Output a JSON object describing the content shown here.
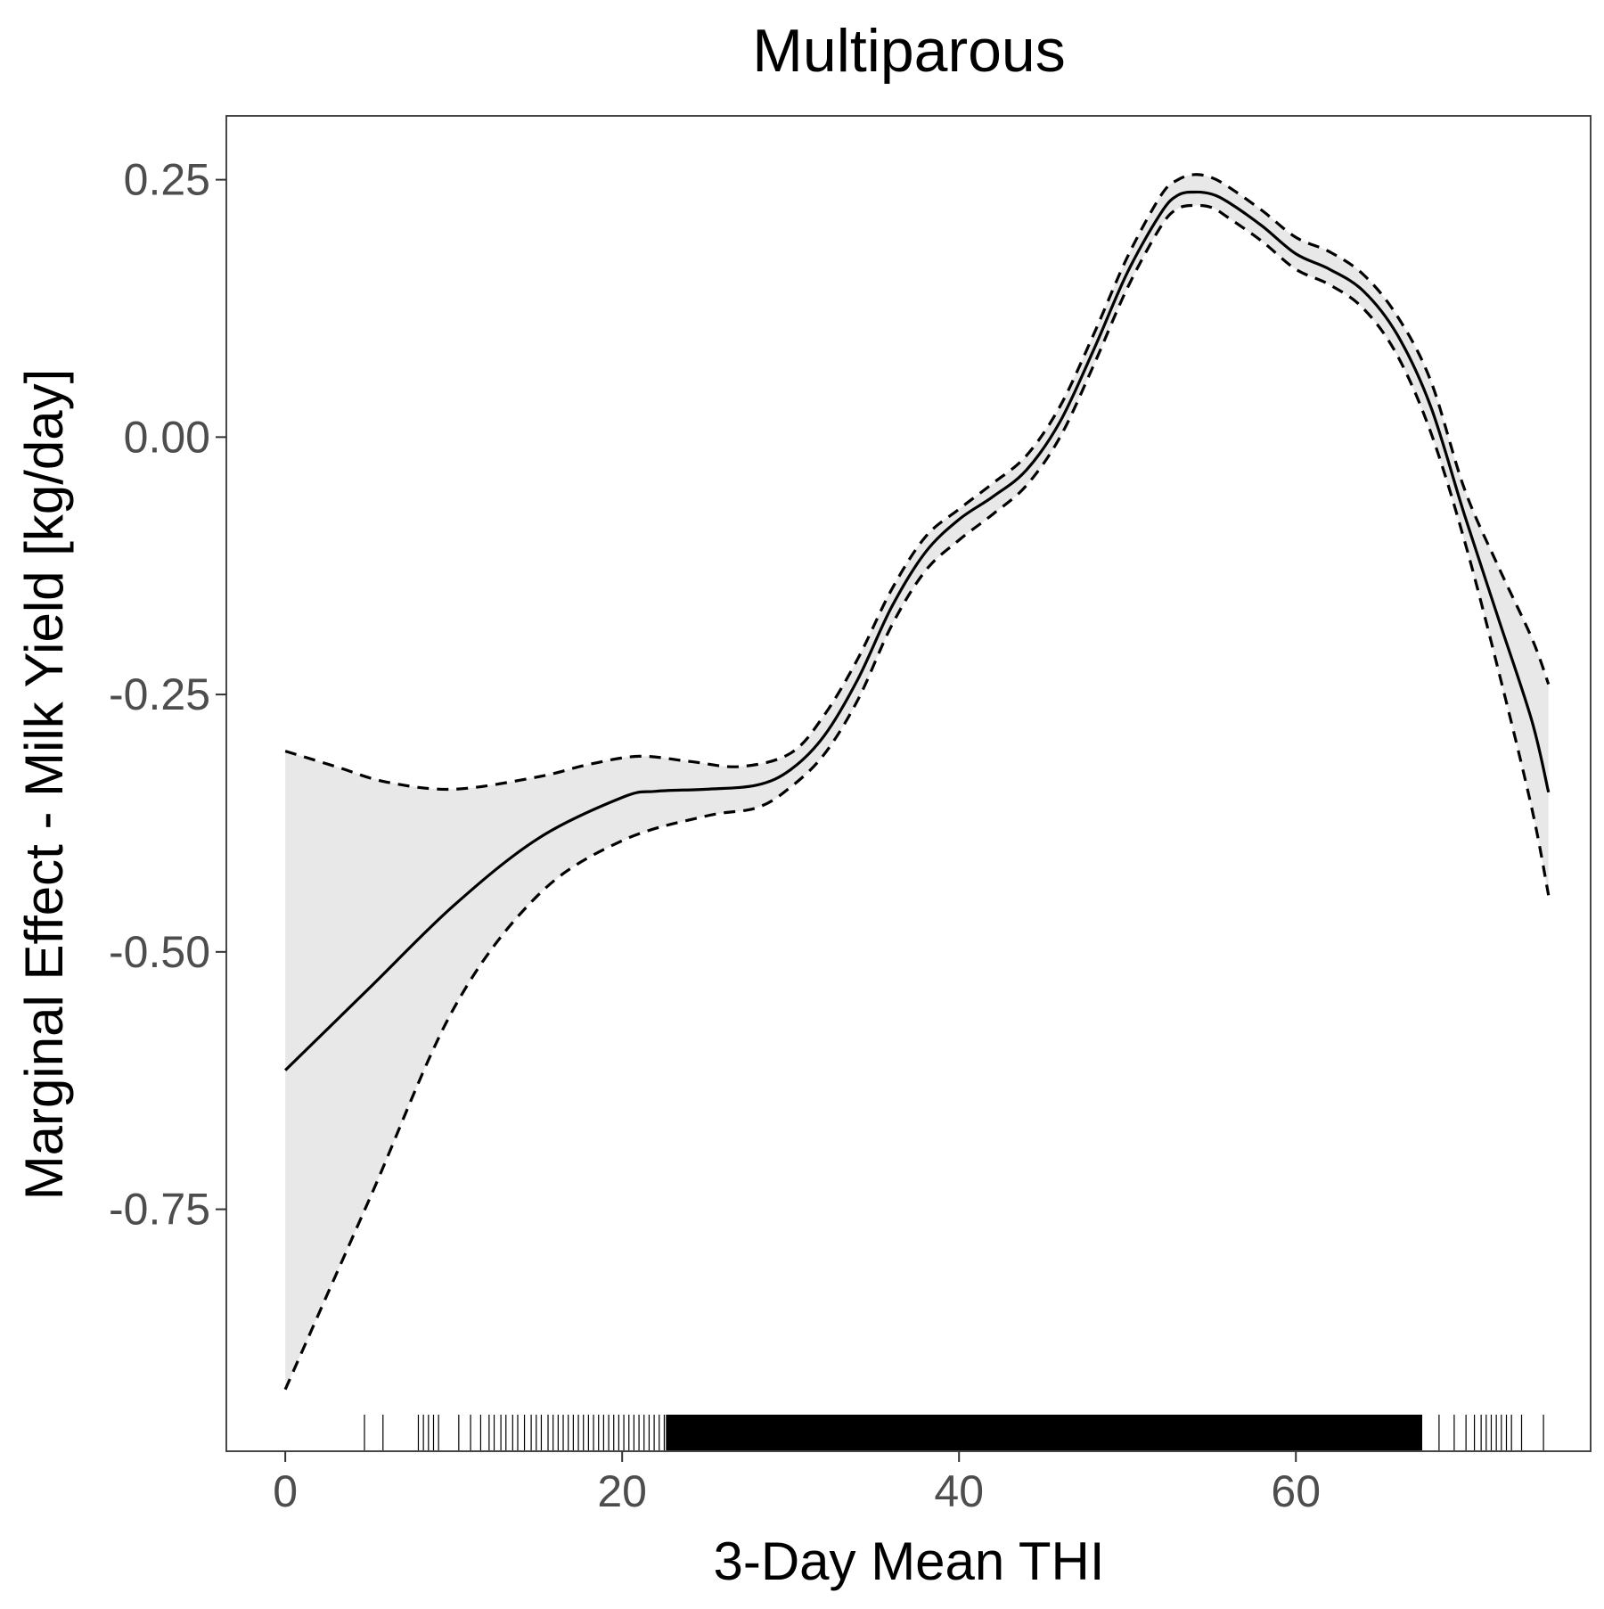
{
  "chart_data": {
    "type": "line",
    "title": "Multiparous",
    "xlabel": "3-Day Mean THI",
    "ylabel": "Marginal Effect - Milk Yield [kg/day]",
    "xlim": [
      -3.5,
      77.5
    ],
    "ylim": [
      -0.985,
      0.312
    ],
    "x_ticks": [
      0,
      20,
      40,
      60
    ],
    "x_tick_labels": [
      "0",
      "20",
      "40",
      "60"
    ],
    "y_ticks": [
      0.25,
      0.0,
      -0.25,
      -0.5,
      -0.75
    ],
    "y_tick_labels": [
      "0.25",
      "0.00",
      "-0.25",
      "-0.50",
      "-0.75"
    ],
    "grid": false,
    "legend": "none",
    "colors": {
      "ribbon": "#e8e8e8",
      "line": "#000000",
      "panel_border": "#333333",
      "tick_text": "#4d4d4d"
    },
    "series": [
      {
        "style": "solid",
        "x": [
          0,
          5,
          10,
          15,
          20,
          22,
          25,
          28,
          30,
          32,
          34,
          36,
          38,
          40,
          42,
          44,
          46,
          48,
          50,
          52,
          53,
          54,
          55,
          56,
          58,
          60,
          62,
          64,
          66,
          68,
          70,
          72,
          74,
          75
        ],
        "y": [
          -0.615,
          -0.535,
          -0.455,
          -0.39,
          -0.35,
          -0.344,
          -0.342,
          -0.338,
          -0.323,
          -0.29,
          -0.235,
          -0.165,
          -0.112,
          -0.08,
          -0.058,
          -0.032,
          0.015,
          0.085,
          0.16,
          0.218,
          0.235,
          0.238,
          0.236,
          0.228,
          0.205,
          0.178,
          0.163,
          0.142,
          0.1,
          0.03,
          -0.075,
          -0.175,
          -0.275,
          -0.345
        ]
      },
      {
        "style": "dashed",
        "x": [
          0,
          3,
          6,
          10,
          15,
          18,
          21,
          24,
          27,
          30,
          32,
          34,
          36,
          38,
          40,
          42,
          44,
          46,
          48,
          50,
          52,
          53,
          54,
          55,
          56,
          58,
          60,
          62,
          64,
          66,
          68,
          70,
          72,
          74,
          75
        ],
        "y": [
          -0.305,
          -0.32,
          -0.335,
          -0.342,
          -0.33,
          -0.318,
          -0.31,
          -0.315,
          -0.32,
          -0.307,
          -0.27,
          -0.215,
          -0.148,
          -0.097,
          -0.07,
          -0.045,
          -0.018,
          0.03,
          0.1,
          0.175,
          0.235,
          0.25,
          0.255,
          0.252,
          0.243,
          0.22,
          0.194,
          0.18,
          0.158,
          0.118,
          0.055,
          -0.05,
          -0.125,
          -0.195,
          -0.24
        ]
      },
      {
        "style": "dashed",
        "x": [
          0,
          5,
          10,
          15,
          20,
          25,
          28,
          30,
          32,
          34,
          36,
          38,
          40,
          42,
          44,
          46,
          48,
          50,
          52,
          53,
          54,
          55,
          56,
          58,
          60,
          62,
          64,
          66,
          68,
          70,
          72,
          74,
          75
        ],
        "y": [
          -0.925,
          -0.74,
          -0.555,
          -0.445,
          -0.392,
          -0.368,
          -0.36,
          -0.34,
          -0.308,
          -0.255,
          -0.183,
          -0.13,
          -0.1,
          -0.075,
          -0.047,
          0.0,
          0.07,
          0.145,
          0.205,
          0.222,
          0.225,
          0.223,
          0.213,
          0.19,
          0.163,
          0.148,
          0.125,
          0.08,
          0.005,
          -0.1,
          -0.225,
          -0.36,
          -0.445
        ]
      }
    ],
    "ribbon": {
      "between_series": [
        1,
        2
      ]
    },
    "rug_x": [
      4.7,
      5.8,
      7.9,
      8.2,
      8.5,
      8.8,
      9.1,
      10.3,
      11.0,
      11.6,
      12.1,
      12.4,
      12.8,
      13.1,
      13.5,
      13.8,
      14.2,
      14.6,
      14.9,
      15.2,
      15.6,
      15.9,
      16.2,
      16.5,
      16.8,
      17.1,
      17.4,
      17.7,
      18.0,
      18.3,
      18.6,
      18.9,
      19.2,
      19.5,
      19.8,
      20.1,
      20.4,
      20.7,
      21.0,
      21.3,
      21.6,
      21.9,
      22.2,
      22.5,
      22.8,
      23.2,
      23.6,
      24.0,
      24.4,
      24.8,
      25.3,
      25.8,
      26.3,
      26.9,
      27.5,
      28.2,
      29.0,
      29.9,
      31.0,
      32.2,
      33.5,
      35.0,
      36.6,
      38.3,
      40.1,
      42.0,
      44.0,
      46.0,
      48.0,
      50.0,
      52.0,
      54.0,
      56.0,
      58.0,
      60.0,
      62.0,
      64.0,
      65.8,
      67.3,
      68.5,
      69.4,
      70.1,
      70.6,
      71.0,
      71.3,
      71.6,
      71.9,
      72.2,
      72.5,
      72.8,
      73.4,
      74.7
    ]
  }
}
